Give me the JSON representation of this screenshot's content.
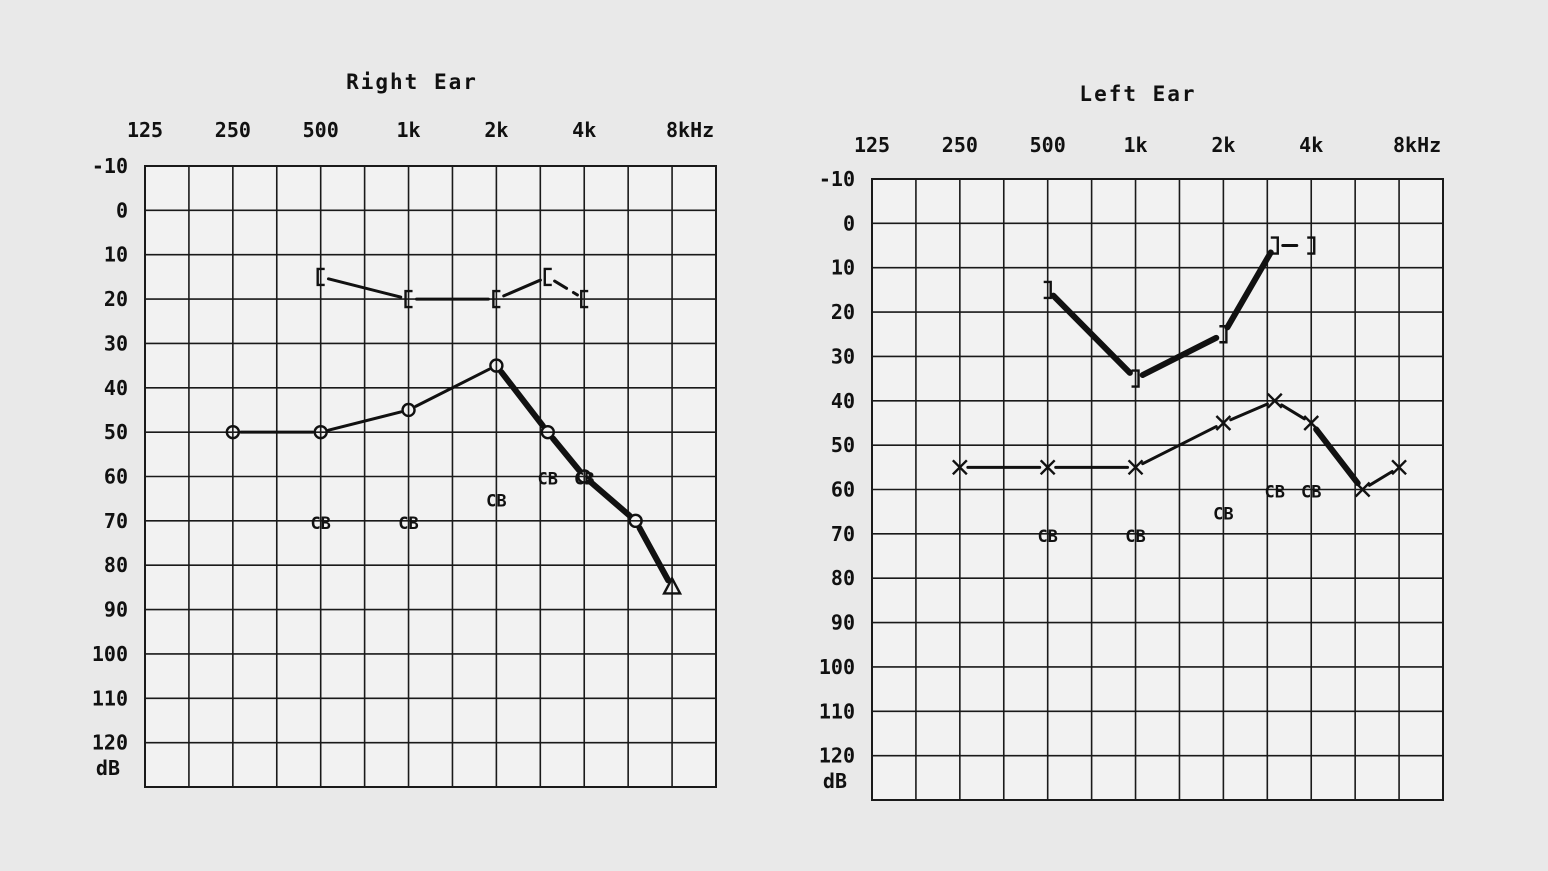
{
  "chart_data": [
    {
      "type": "line",
      "title": "Right Ear",
      "x_ticks": [
        "125",
        "250",
        "500",
        "1k",
        "2k",
        "4k",
        "8kHz"
      ],
      "y_ticks": [
        "-10",
        "0",
        "10",
        "20",
        "30",
        "40",
        "50",
        "60",
        "70",
        "80",
        "90",
        "100",
        "110",
        "120"
      ],
      "y_unit": "dB",
      "ylim": [
        -10,
        120
      ],
      "grid": true,
      "series": [
        {
          "symbol": "bracket-left",
          "x": [
            500,
            1000,
            2000,
            3000,
            4000
          ],
          "y": [
            15,
            20,
            20,
            15,
            20
          ],
          "line": [
            "thin",
            "thin",
            "thin",
            "dashed"
          ]
        },
        {
          "symbol": "circle",
          "x": [
            250,
            500,
            1000,
            2000,
            3000,
            4000,
            6000,
            8000
          ],
          "y": [
            50,
            50,
            45,
            35,
            50,
            60,
            70,
            85
          ],
          "line": [
            "thin",
            "thin",
            "thin",
            "thick",
            "thick",
            "thick",
            "thick"
          ],
          "end_marker": "triangle"
        }
      ],
      "annotations": [
        {
          "text": "CB",
          "x": 500,
          "y": 70
        },
        {
          "text": "CB",
          "x": 1000,
          "y": 70
        },
        {
          "text": "CB",
          "x": 2000,
          "y": 65
        },
        {
          "text": "CB",
          "x": 3000,
          "y": 60
        },
        {
          "text": "CB",
          "x": 4000,
          "y": 60
        }
      ]
    },
    {
      "type": "line",
      "title": "Left Ear",
      "x_ticks": [
        "125",
        "250",
        "500",
        "1k",
        "2k",
        "4k",
        "8kHz"
      ],
      "y_ticks": [
        "-10",
        "0",
        "10",
        "20",
        "30",
        "40",
        "50",
        "60",
        "70",
        "80",
        "90",
        "100",
        "110",
        "120"
      ],
      "y_unit": "dB",
      "ylim": [
        -10,
        120
      ],
      "grid": true,
      "series": [
        {
          "symbol": "bracket-right",
          "x": [
            500,
            1000,
            2000,
            3000,
            4000
          ],
          "y": [
            15,
            35,
            25,
            5,
            5
          ],
          "line": [
            "thick",
            "thick",
            "thick",
            "dashed"
          ]
        },
        {
          "symbol": "cross",
          "x": [
            250,
            500,
            1000,
            2000,
            3000,
            4000,
            6000,
            8000
          ],
          "y": [
            55,
            55,
            55,
            45,
            40,
            45,
            60,
            55
          ],
          "line": [
            "thin",
            "thin",
            "thin",
            "thin",
            "thin",
            "thick",
            "thin"
          ]
        }
      ],
      "annotations": [
        {
          "text": "CB",
          "x": 500,
          "y": 70
        },
        {
          "text": "CB",
          "x": 1000,
          "y": 70
        },
        {
          "text": "CB",
          "x": 2000,
          "y": 65
        },
        {
          "text": "CB",
          "x": 3000,
          "y": 60
        },
        {
          "text": "CB",
          "x": 4000,
          "y": 60
        }
      ]
    }
  ]
}
